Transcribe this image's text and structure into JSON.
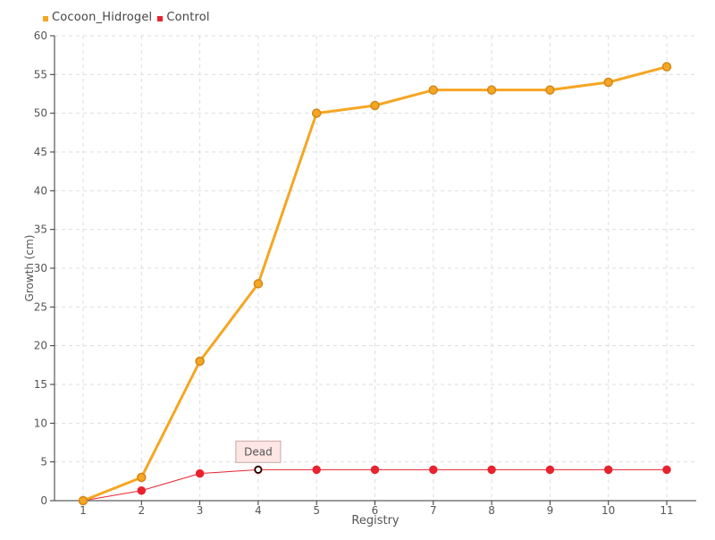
{
  "colors": {
    "series_cocoon": "#f5a623",
    "series_cocoon_stroke": "#d4861a",
    "series_control": "#e8222e",
    "grid": "#dddddd",
    "axis": "#333333",
    "tooltip_bg": "#fde6e4",
    "tooltip_border": "#c9a7a4"
  },
  "legend": [
    {
      "label": "Cocoon_Hidrogel",
      "color": "#f5a623"
    },
    {
      "label": "Control",
      "color": "#e8222e"
    }
  ],
  "tooltip": {
    "text": "Dead",
    "series": "Control",
    "x": 4
  },
  "chart_data": {
    "type": "line",
    "x": [
      1,
      2,
      3,
      4,
      5,
      6,
      7,
      8,
      9,
      10,
      11
    ],
    "categories": [
      "1",
      "2",
      "3",
      "4",
      "5",
      "6",
      "7",
      "8",
      "9",
      "10",
      "11"
    ],
    "series": [
      {
        "name": "Cocoon_Hidrogel",
        "values": [
          0,
          3,
          18,
          28,
          50,
          51,
          53,
          53,
          53,
          54,
          56
        ]
      },
      {
        "name": "Control",
        "values": [
          0,
          1.3,
          3.5,
          4,
          4,
          4,
          4,
          4,
          4,
          4,
          4
        ]
      }
    ],
    "xlabel": "Registry",
    "ylabel": "Growth (cm)",
    "ylim": [
      0,
      60
    ],
    "yticks": [
      0,
      5,
      10,
      15,
      20,
      25,
      30,
      35,
      40,
      45,
      50,
      55,
      60
    ],
    "grid": true,
    "legend_position": "top-left"
  }
}
